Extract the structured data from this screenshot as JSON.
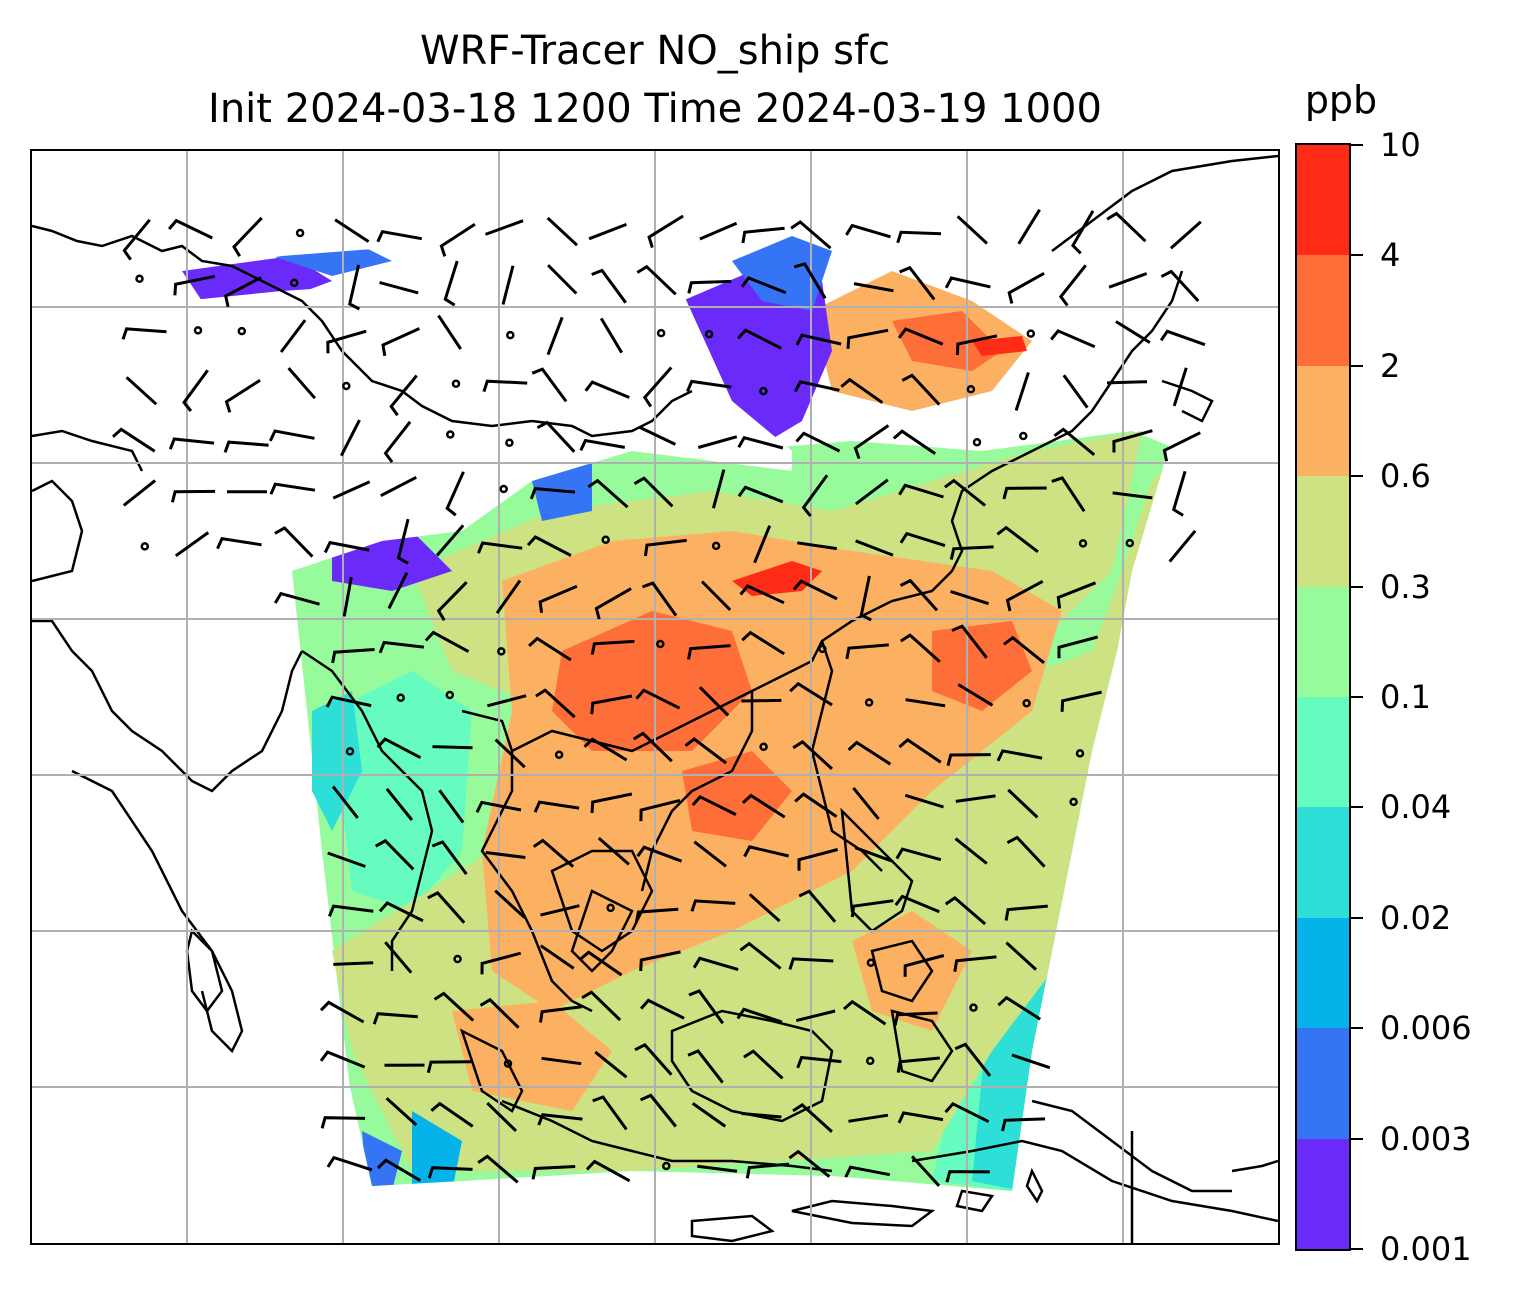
{
  "title": {
    "line1": "WRF-Tracer NO_ship sfc",
    "line2": "Init 2024-03-18 1200 Time 2024-03-19 1000"
  },
  "colorbar": {
    "label": "ppb",
    "levels": [
      "0.001",
      "0.003",
      "0.006",
      "0.02",
      "0.04",
      "0.1",
      "0.3",
      "0.6",
      "2",
      "4",
      "10"
    ],
    "colors": [
      "#6a2bfa",
      "#3574f4",
      "#06b2ea",
      "#2ddfd6",
      "#66fbbf",
      "#97fb9c",
      "#cce283",
      "#fcb162",
      "#fd6e39",
      "#fe2b16"
    ]
  },
  "map": {
    "gridlines": true,
    "projection": "mercator",
    "region": "South / Southeast / East Asia and Western Pacific",
    "wind_barbs": true
  }
}
